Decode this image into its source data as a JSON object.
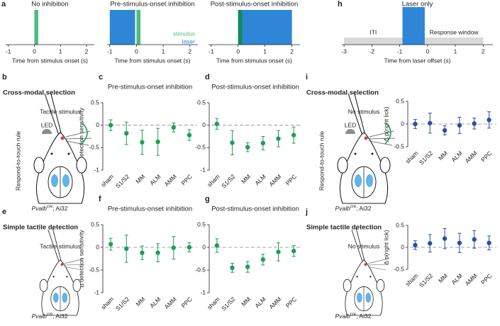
{
  "chart_data": [
    {
      "panel": "a",
      "type": "timeline",
      "title": "No inhibition",
      "xlabel": "Time from stimulus onset (s)",
      "xlim": [
        -1.1,
        2.3
      ],
      "xticks": [
        -1,
        0,
        1,
        2
      ],
      "series": [
        {
          "color": "#4cbd7e",
          "values": [
            0,
            0.15
          ]
        }
      ]
    },
    {
      "type": "timeline",
      "title": "Pre-stimulus-onset inhibition",
      "xlabel": "Time from stimulus onset (s)",
      "xlim": [
        -1.1,
        2.3
      ],
      "xticks": [
        -1,
        0,
        1,
        2
      ],
      "legend": "lower right",
      "series": [
        {
          "name": "laser",
          "color": "#2f86d6",
          "values": [
            -1,
            -0.05
          ]
        },
        {
          "name": "stimulus",
          "color": "#4cbd7e",
          "values": [
            0,
            0.15
          ]
        }
      ]
    },
    {
      "type": "timeline",
      "title": "Post-stimulus-onset inhibition",
      "xlabel": "Time from stimulus onset (s)",
      "xlim": [
        -1.1,
        2.3
      ],
      "xticks": [
        -1,
        0,
        1,
        2
      ],
      "series": [
        {
          "color": "#2f86d6",
          "values": [
            0,
            2
          ]
        },
        {
          "color": "#138a5a",
          "values": [
            0,
            0.15
          ]
        }
      ]
    },
    {
      "panel": "h",
      "type": "timeline",
      "title": "Laser only",
      "xlabel": "Time from laser offset (s)",
      "xlim": [
        -3.08,
        2.35
      ],
      "xticks": [
        -3,
        -2,
        -1,
        0,
        1,
        2
      ],
      "series": [
        {
          "name": "ITI",
          "color": "#d9d9d9",
          "values": [
            -3,
            -0.9
          ],
          "band": true
        },
        {
          "name": "Response window",
          "color": "#d9d9d9",
          "values": [
            -0.1,
            2
          ],
          "band": true
        },
        {
          "color": "#2f86d6",
          "values": [
            -0.9,
            -0.1
          ]
        }
      ]
    },
    {
      "panel": "c",
      "type": "errorbar",
      "title": "Pre-stimulus-onset inhibition",
      "ylabel": "Δ detection sensitivity",
      "color": "#1f9e55",
      "categories": [
        "sham",
        "S1/S2",
        "MM",
        "ALM",
        "AMM",
        "PPC"
      ],
      "values": [
        0,
        -0.18,
        -0.38,
        -0.37,
        -0.05,
        -0.22
      ],
      "errors": [
        0.12,
        0.25,
        0.27,
        0.3,
        0.1,
        0.12
      ],
      "ylim": [
        -1,
        0.5
      ],
      "yticks": [
        -1,
        -0.5,
        0,
        0.5
      ]
    },
    {
      "panel": "d",
      "type": "errorbar",
      "title": "Post-stimulus-onset inhibition",
      "color": "#1f9e55",
      "categories": [
        "sham",
        "S1/S2",
        "MM",
        "ALM",
        "AMM",
        "PPC"
      ],
      "values": [
        0.03,
        -0.39,
        -0.49,
        -0.4,
        -0.3,
        -0.22
      ],
      "errors": [
        0.12,
        0.27,
        0.1,
        0.15,
        0.18,
        0.18
      ],
      "ylim": [
        -1,
        0.5
      ],
      "yticks": [
        -1,
        -0.5,
        0,
        0.5
      ]
    },
    {
      "panel": "f",
      "type": "errorbar",
      "title": "Pre-stimulus-onset inhibition",
      "ylabel": "Δ detection sensitivity",
      "color": "#1f9e55",
      "categories": [
        "sham",
        "S1/S2",
        "MM",
        "ALM",
        "AMM",
        "PPC"
      ],
      "values": [
        0.07,
        -0.03,
        -0.12,
        -0.12,
        -0.01,
        0
      ],
      "errors": [
        0.13,
        0.3,
        0.15,
        0.2,
        0.25,
        0.1
      ],
      "ylim": [
        -1,
        0.5
      ],
      "yticks": [
        -1,
        -0.5,
        0,
        0.5
      ]
    },
    {
      "panel": "g",
      "type": "errorbar",
      "title": "Post-stimulus-onset inhibition",
      "color": "#1f9e55",
      "categories": [
        "sham",
        "S1/S2",
        "MM",
        "ALM",
        "AMM",
        "PPC"
      ],
      "values": [
        0.04,
        -0.45,
        -0.43,
        -0.27,
        -0.1,
        -0.08
      ],
      "errors": [
        0.15,
        0.1,
        0.12,
        0.12,
        0.2,
        0.12
      ],
      "ylim": [
        -1,
        0.5
      ],
      "yticks": [
        -1,
        -0.5,
        0,
        0.5
      ]
    },
    {
      "type": "errorbar",
      "ylabel": "Δ p(right lick)",
      "color": "#2a4fa8",
      "categories": [
        "sham",
        "S1/S2",
        "MM",
        "ALM",
        "AMM",
        "PPC"
      ],
      "values": [
        0,
        0.02,
        -0.14,
        -0.03,
        0.01,
        0.09
      ],
      "errors": [
        0.1,
        0.22,
        0.1,
        0.18,
        0.12,
        0.18
      ],
      "ylim": [
        -0.5,
        0.5
      ],
      "yticks": [
        -0.5,
        0,
        0.5
      ]
    },
    {
      "type": "errorbar",
      "ylabel": "Δ p(right lick)",
      "color": "#2a4fa8",
      "categories": [
        "sham",
        "S1/S2",
        "MM",
        "ALM",
        "AMM",
        "PPC"
      ],
      "values": [
        0.05,
        0.09,
        0.2,
        0.1,
        0.18,
        0.1
      ],
      "errors": [
        0.1,
        0.2,
        0.23,
        0.22,
        0.2,
        0.16
      ],
      "ylim": [
        -0.5,
        0.5
      ],
      "yticks": [
        -0.5,
        0,
        0.5
      ]
    }
  ],
  "schematics": [
    {
      "panel": "b",
      "task": "Cross-modal selection",
      "stimulus": "Tactile stimulus",
      "rule": "Respond-to-touch rule",
      "led": "LED",
      "genotype": {
        "gene": "Pvalb",
        "allele": "cre",
        "line": "; Ai32"
      }
    },
    {
      "panel": "e",
      "task": "Simple tactile detection",
      "stimulus": "Tactile stimulus",
      "genotype": {
        "gene": "Pvalb",
        "allele": "cre",
        "line": "; Ai32"
      }
    },
    {
      "panel": "i",
      "task": "Cross-modal selection",
      "stimulus": "No stimulus",
      "rule": "Respond-to-touch rule",
      "led": "LED",
      "genotype": {
        "gene": "Pvalb",
        "allele": "cre",
        "line": "; Ai32"
      }
    },
    {
      "panel": "j",
      "task": "Simple tactile detection",
      "stimulus": "No stimulus",
      "genotype": {
        "gene": "Pvalb",
        "allele": "cre",
        "line": "; Ai32"
      }
    }
  ]
}
